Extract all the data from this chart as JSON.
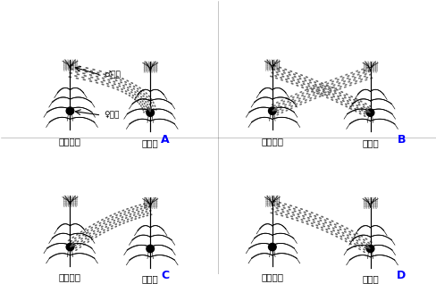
{
  "bg_color": "#ffffff",
  "panels": [
    "A",
    "B",
    "C",
    "D"
  ],
  "plant_scale": 1.0,
  "dot_color": "#555555",
  "line_color": "#000000"
}
